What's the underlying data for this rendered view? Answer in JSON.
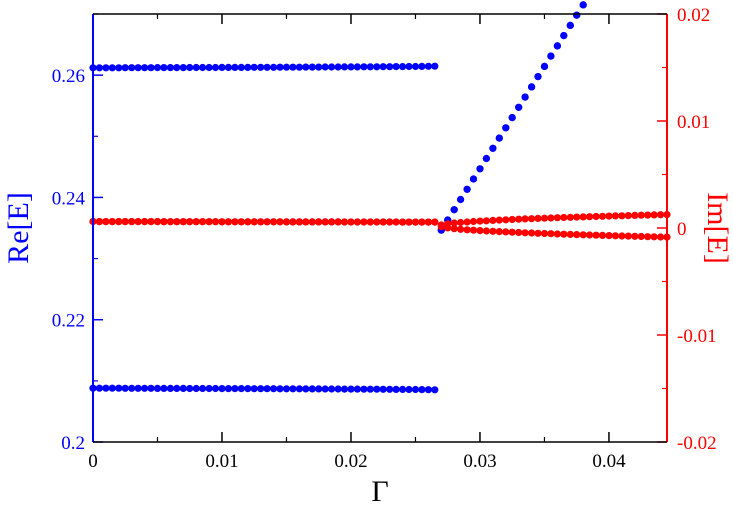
{
  "colors": {
    "left": "#0000ff",
    "right": "#ff0000",
    "frame": "#000000"
  },
  "chart_data": {
    "type": "scatter",
    "title": "",
    "xlabel": "Γ",
    "ylabel_left": "Re[E]",
    "ylabel_right": "Im[E]",
    "xlim": [
      0,
      0.0445
    ],
    "ylim_left": [
      0.2,
      0.27
    ],
    "ylim_right": [
      -0.02,
      0.02
    ],
    "x_ticks": [
      "0",
      "0.01",
      "0.02",
      "0.03",
      "0.04"
    ],
    "left_ticks": [
      "0.2",
      "0.22",
      "0.24",
      "0.26"
    ],
    "right_ticks": [
      "-0.02",
      "-0.01",
      "0",
      "0.01",
      "0.02"
    ],
    "grid": false,
    "series": [
      {
        "axis": "left",
        "color": "#0000ff",
        "gamma_c": 0.0269,
        "x_max": 0.0445,
        "step": 0.0005,
        "branches": [
          {
            "below": [
              0.2615,
              -1.85e-05,
              0.5
            ],
            "above": [
              0.2343,
              0.000335,
              1
            ]
          },
          {
            "below": [
              0.2085,
              1.85e-05,
              0.5
            ],
            "above": [
              0.2343,
              0.000335,
              1
            ]
          }
        ]
      },
      {
        "axis": "right",
        "color": "#ff0000",
        "gamma_c": 0.0269,
        "x_max": 0.0445,
        "step": 0.0005,
        "branches": [
          {
            "below": [
              0.00055,
              2e-07,
              1
            ],
            "above": [
              0.0002,
              7.95e-05,
              0.5
            ]
          },
          {
            "below": [
              0.00055,
              2e-07,
              1
            ],
            "above": [
              0.0002,
              -7.95e-05,
              0.5
            ]
          }
        ]
      }
    ]
  }
}
